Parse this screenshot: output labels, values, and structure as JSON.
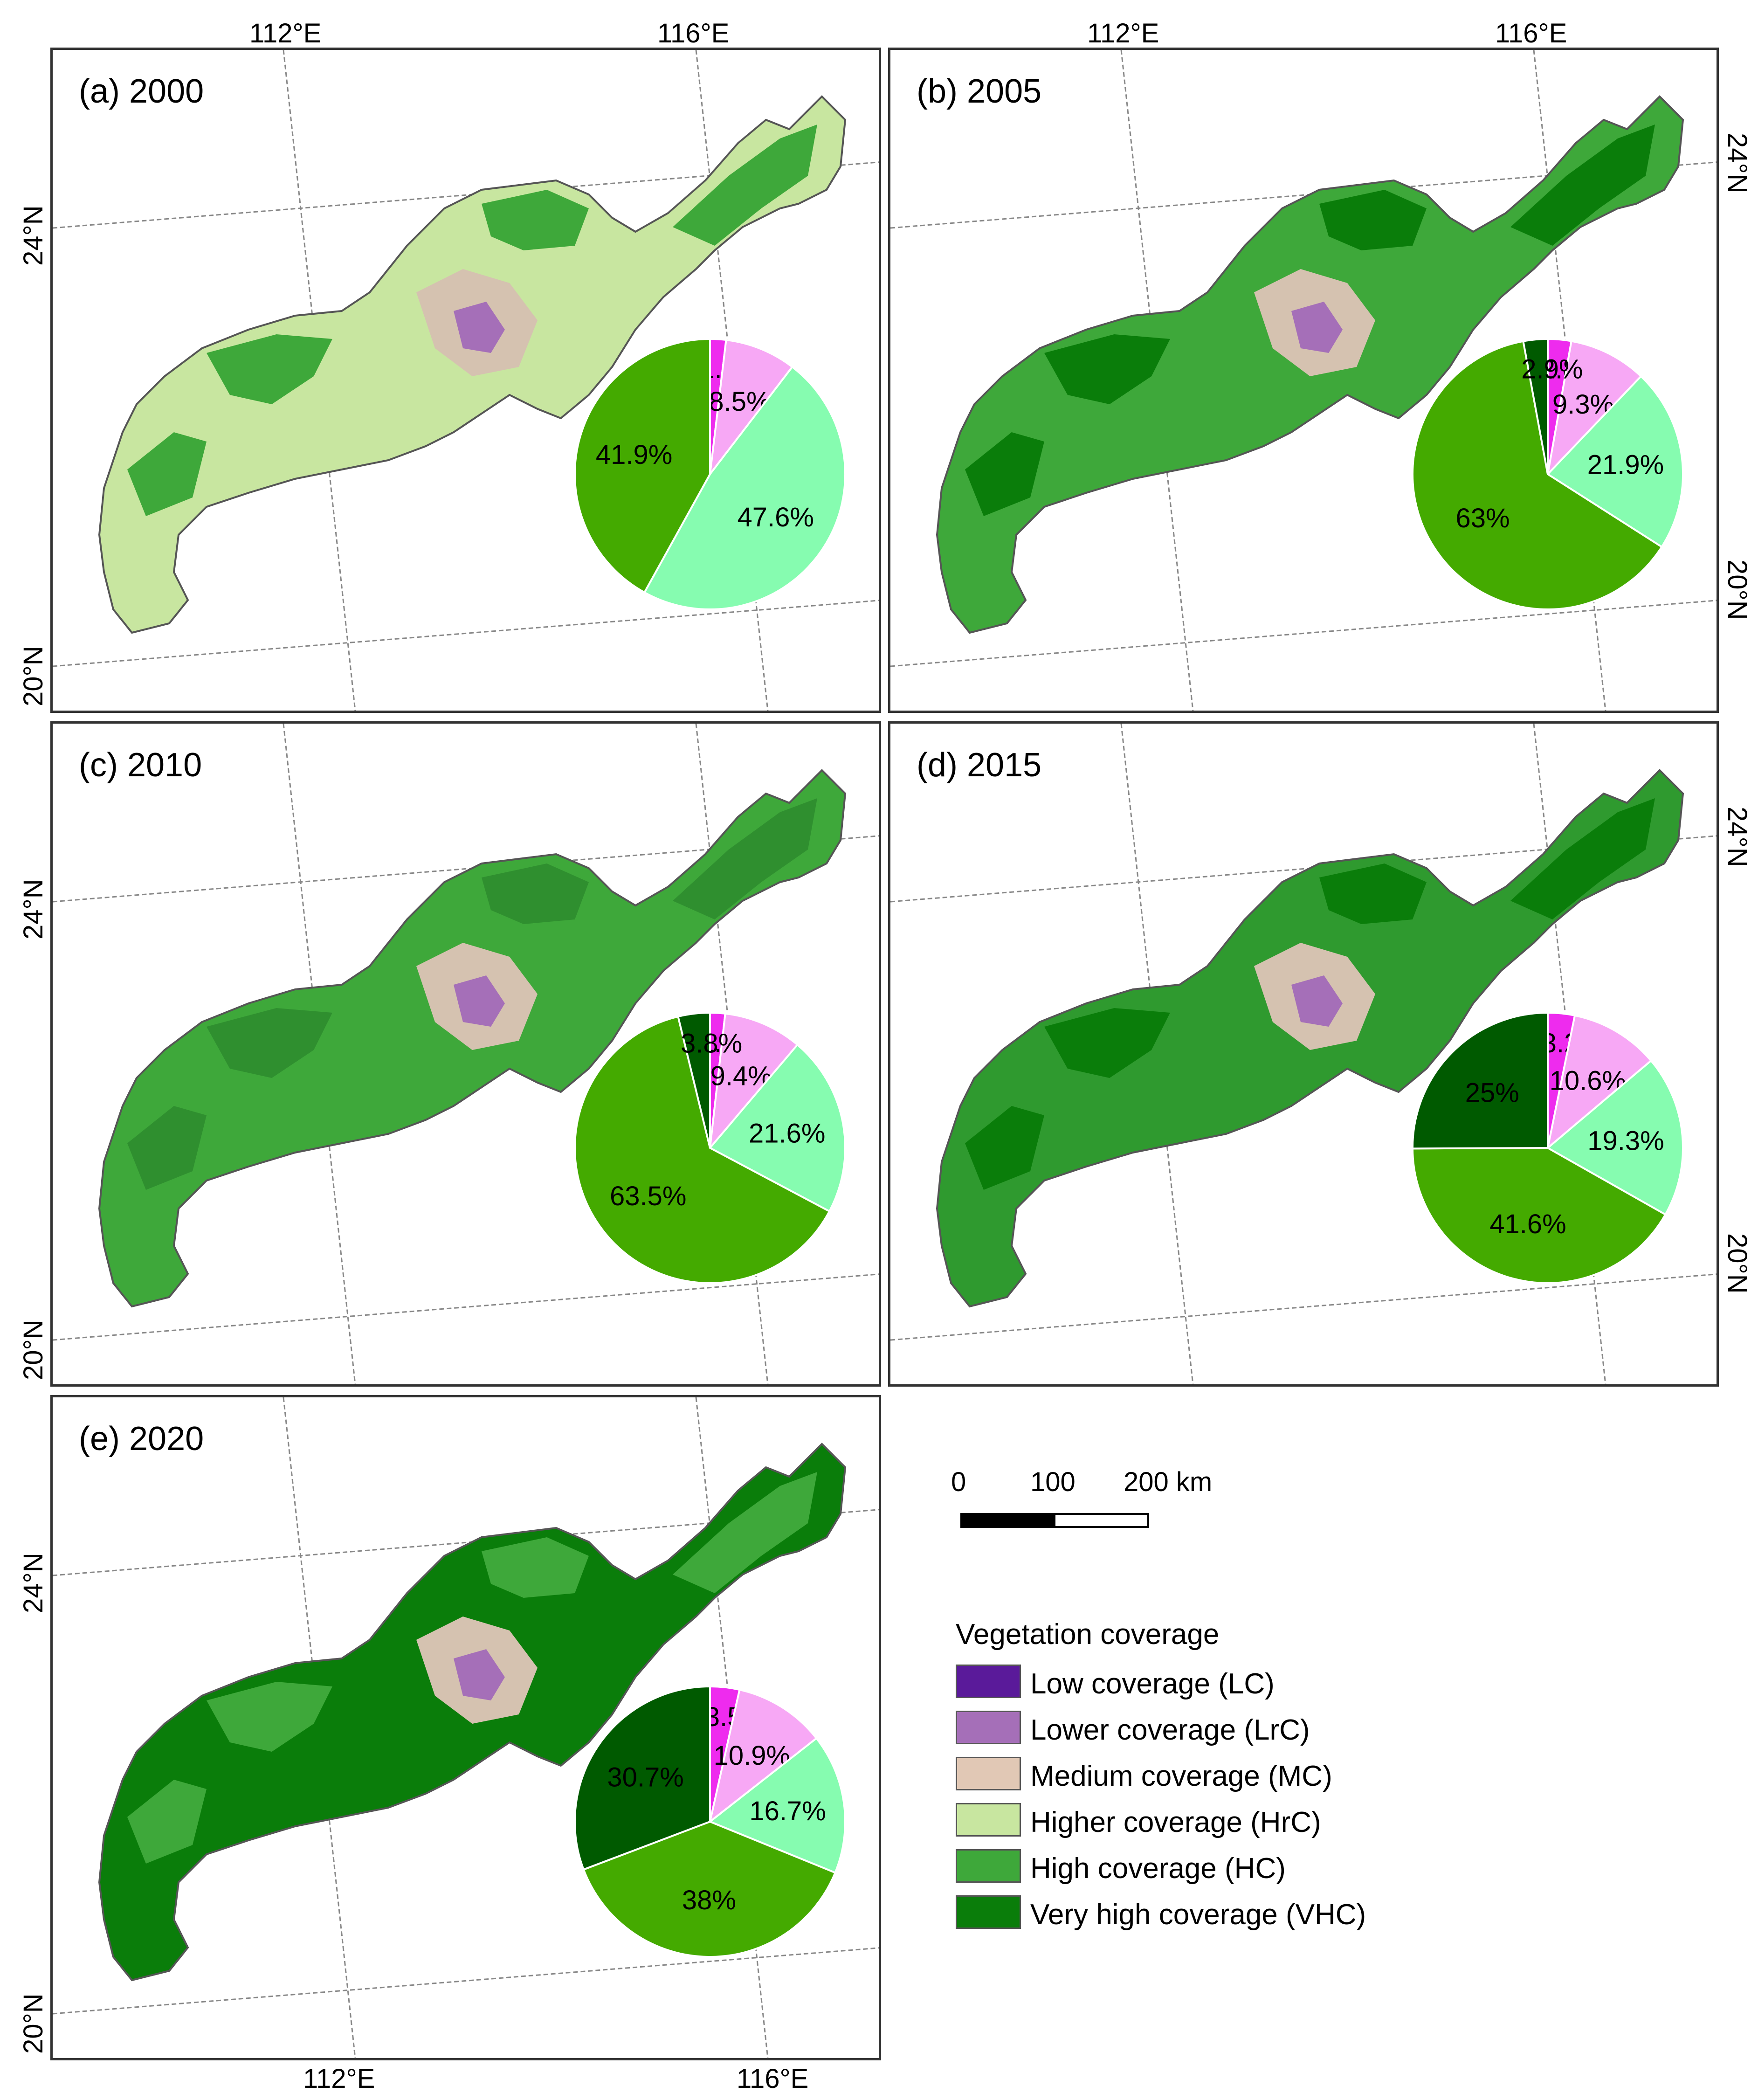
{
  "panels": [
    {
      "id": "a",
      "title": "(a) 2000",
      "slices": [
        {
          "cls": "LrC",
          "label": "1.9%",
          "value": 1.9
        },
        {
          "cls": "MC",
          "label": "8.5%",
          "value": 8.5
        },
        {
          "cls": "HrC",
          "label": "47.6%",
          "value": 47.6
        },
        {
          "cls": "HC",
          "label": "41.9%",
          "value": 41.9
        }
      ]
    },
    {
      "id": "b",
      "title": "(b) 2005",
      "slices": [
        {
          "cls": "LrC",
          "label": "2.8%",
          "value": 2.8
        },
        {
          "cls": "MC",
          "label": "9.3%",
          "value": 9.3
        },
        {
          "cls": "HrC",
          "label": "21.9%",
          "value": 21.9
        },
        {
          "cls": "HC",
          "label": "63%",
          "value": 63
        },
        {
          "cls": "VHC",
          "label": "2.9%",
          "value": 2.9
        }
      ]
    },
    {
      "id": "c",
      "title": "(c) 2010",
      "slices": [
        {
          "cls": "LrC",
          "label": "1.8%",
          "value": 1.8
        },
        {
          "cls": "MC",
          "label": "9.4%",
          "value": 9.4
        },
        {
          "cls": "HrC",
          "label": "21.6%",
          "value": 21.6
        },
        {
          "cls": "HC",
          "label": "63.5%",
          "value": 63.5
        },
        {
          "cls": "VHC",
          "label": "3.8%",
          "value": 3.8
        }
      ]
    },
    {
      "id": "d",
      "title": "(d) 2015",
      "slices": [
        {
          "cls": "LrC",
          "label": "3.2%",
          "value": 3.2
        },
        {
          "cls": "MC",
          "label": "10.6%",
          "value": 10.6
        },
        {
          "cls": "HrC",
          "label": "19.3%",
          "value": 19.3
        },
        {
          "cls": "HC",
          "label": "41.6%",
          "value": 41.6
        },
        {
          "cls": "VHC",
          "label": "25%",
          "value": 25
        }
      ]
    },
    {
      "id": "e",
      "title": "(e) 2020",
      "slices": [
        {
          "cls": "LrC",
          "label": "3.5%",
          "value": 3.5
        },
        {
          "cls": "MC",
          "label": "10.9%",
          "value": 10.9
        },
        {
          "cls": "HrC",
          "label": "16.7%",
          "value": 16.7
        },
        {
          "cls": "HC",
          "label": "38%",
          "value": 38
        },
        {
          "cls": "VHC",
          "label": "30.7%",
          "value": 30.7
        }
      ]
    }
  ],
  "graticule": {
    "lon_112": "112°E",
    "lon_116": "116°E",
    "lat_24": "24°N",
    "lat_20": "20°N"
  },
  "scale_bar": {
    "tick_0": "0",
    "tick_100": "100",
    "tick_200": "200 km"
  },
  "legend": {
    "title": "Vegetation coverage",
    "items": [
      {
        "label": "Low coverage (LC)",
        "color": "#5a1a9a"
      },
      {
        "label": "Lower coverage (LrC)",
        "color": "#a56fb8"
      },
      {
        "label": "Medium coverage (MC)",
        "color": "#e1c8b5"
      },
      {
        "label": "Higher coverage (HrC)",
        "color": "#c8e6a0"
      },
      {
        "label": "High coverage  (HC)",
        "color": "#3ea83a"
      },
      {
        "label": "Very high coverage (VHC)",
        "color": "#0a7d0a"
      }
    ]
  },
  "pie_colors": {
    "LrC": "#ee2bee",
    "MC": "#f7a8f5",
    "HrC": "#86fcb0",
    "HC": "#44aa00",
    "VHC": "#005a00"
  },
  "map_colors": {
    "a": {
      "base": "#c8e6a0",
      "patch": "#3ea83a",
      "medium": "#d5c2b0",
      "lower": "#a56fb8"
    },
    "b": {
      "base": "#3ea83a",
      "patch": "#0a7d0a",
      "medium": "#d5c2b0",
      "lower": "#a56fb8"
    },
    "c": {
      "base": "#3ea83a",
      "patch": "#2f8f2f",
      "medium": "#d5c2b0",
      "lower": "#a56fb8"
    },
    "d": {
      "base": "#2f9a2f",
      "patch": "#0a7d0a",
      "medium": "#d5c2b0",
      "lower": "#a56fb8"
    },
    "e": {
      "base": "#0a7d0a",
      "patch": "#3ea83a",
      "medium": "#d5c2b0",
      "lower": "#a56fb8"
    }
  }
}
